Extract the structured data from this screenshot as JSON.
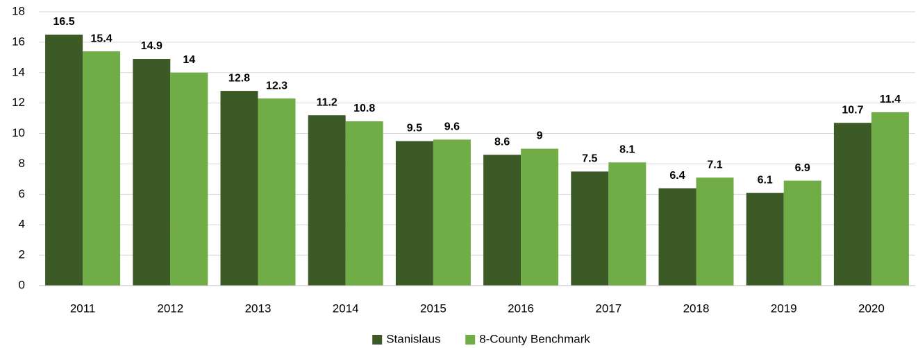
{
  "chart_data": {
    "type": "bar",
    "categories": [
      "2011",
      "2012",
      "2013",
      "2014",
      "2015",
      "2016",
      "2017",
      "2018",
      "2019",
      "2020"
    ],
    "series": [
      {
        "name": "Stanislaus",
        "color": "#3b5a26",
        "values": [
          16.5,
          14.9,
          12.8,
          11.2,
          9.5,
          8.6,
          7.5,
          6.4,
          6.1,
          10.7
        ]
      },
      {
        "name": "8-County Benchmark",
        "color": "#70ad47",
        "values": [
          15.4,
          14,
          12.3,
          10.8,
          9.6,
          9,
          8.1,
          7.1,
          6.9,
          11.4
        ]
      }
    ],
    "ylim": [
      0,
      18
    ],
    "yticks": [
      0,
      2,
      4,
      6,
      8,
      10,
      12,
      14,
      16,
      18
    ],
    "grid": true,
    "legend": "bottom"
  }
}
